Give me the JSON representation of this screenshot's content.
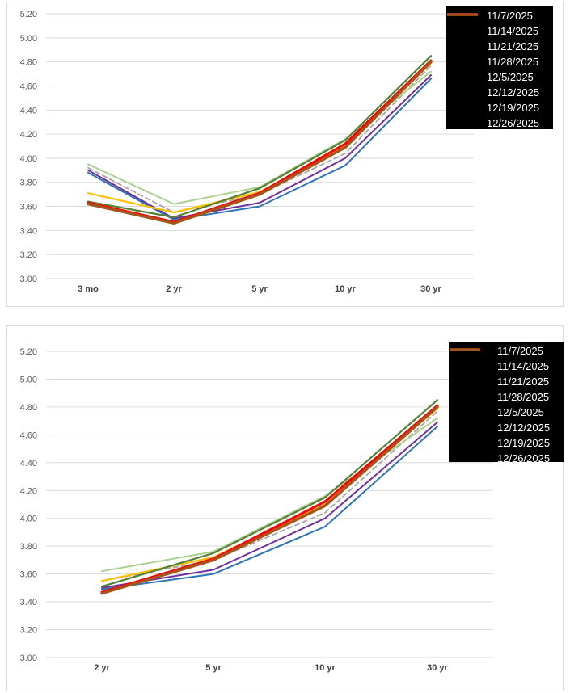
{
  "page": {
    "background": "#ffffff",
    "grid_color": "#d9d9d9",
    "axis_label_color": "#595959",
    "legend_bg": "#000000",
    "legend_text_color": "#ffffff"
  },
  "chart_data": [
    {
      "type": "line",
      "title": "",
      "xlabel": "",
      "ylabel": "",
      "grid": true,
      "legend_position": "top-right-inside",
      "ylim": [
        3.0,
        5.2
      ],
      "ytick_step": 0.2,
      "yticks": [
        "5.20",
        "5.00",
        "4.80",
        "4.60",
        "4.40",
        "4.20",
        "4.00",
        "3.80",
        "3.60",
        "3.40",
        "3.20",
        "3.00"
      ],
      "categories": [
        "3 mo",
        "2 yr",
        "5 yr",
        "10 yr",
        "30 yr"
      ],
      "series": [
        {
          "name": "11/7/2025",
          "color": "#a6a6a6",
          "legend_color": "#bfbfbf",
          "dashed": true,
          "width": 1.8,
          "values": [
            3.92,
            3.55,
            3.7,
            4.04,
            4.77
          ]
        },
        {
          "name": "11/14/2025",
          "color": "#a9d18e",
          "legend_color": "#a9d18e",
          "dashed": false,
          "width": 2.0,
          "values": [
            3.95,
            3.62,
            3.76,
            4.16,
            4.72
          ]
        },
        {
          "name": "11/21/2025",
          "color": "#7030a0",
          "legend_color": "#7030a0",
          "dashed": false,
          "width": 2.0,
          "values": [
            3.9,
            3.5,
            3.63,
            4.0,
            4.69
          ]
        },
        {
          "name": "11/28/2025",
          "color": "#2e75b6",
          "legend_color": "#2e75b6",
          "dashed": false,
          "width": 2.0,
          "values": [
            3.88,
            3.49,
            3.6,
            3.94,
            4.66
          ]
        },
        {
          "name": "12/5/2025",
          "color": "#ffc000",
          "legend_color": "#ffc000",
          "dashed": false,
          "width": 2.2,
          "values": [
            3.71,
            3.55,
            3.72,
            4.1,
            4.79
          ]
        },
        {
          "name": "12/12/2025",
          "color": "#548235",
          "legend_color": "#548235",
          "dashed": false,
          "width": 2.2,
          "values": [
            3.64,
            3.51,
            3.75,
            4.15,
            4.85
          ]
        },
        {
          "name": "12/19/2025",
          "color": "#ff0000",
          "legend_color": "#ff0000",
          "dashed": false,
          "width": 3.0,
          "values": [
            3.63,
            3.47,
            3.71,
            4.12,
            4.81
          ]
        },
        {
          "name": "12/26/2025",
          "color": "#a5551b",
          "legend_color": "#a5551b",
          "dashed": false,
          "width": 3.4,
          "values": [
            3.62,
            3.46,
            3.7,
            4.09,
            4.8
          ]
        }
      ]
    },
    {
      "type": "line",
      "title": "",
      "xlabel": "",
      "ylabel": "",
      "grid": true,
      "legend_position": "top-right-inside",
      "ylim": [
        3.0,
        5.2
      ],
      "ytick_step": 0.2,
      "yticks": [
        "5.20",
        "5.00",
        "4.80",
        "4.60",
        "4.40",
        "4.20",
        "4.00",
        "3.80",
        "3.60",
        "3.40",
        "3.20",
        "3.00"
      ],
      "categories": [
        "2 yr",
        "5 yr",
        "10 yr",
        "30 yr"
      ],
      "series": [
        {
          "name": "11/7/2025",
          "color": "#a6a6a6",
          "legend_color": "#bfbfbf",
          "dashed": true,
          "width": 1.8,
          "values": [
            3.55,
            3.7,
            4.04,
            4.77
          ]
        },
        {
          "name": "11/14/2025",
          "color": "#a9d18e",
          "legend_color": "#a9d18e",
          "dashed": false,
          "width": 2.0,
          "values": [
            3.62,
            3.76,
            4.16,
            4.72
          ]
        },
        {
          "name": "11/21/2025",
          "color": "#7030a0",
          "legend_color": "#7030a0",
          "dashed": false,
          "width": 2.0,
          "values": [
            3.5,
            3.63,
            4.0,
            4.69
          ]
        },
        {
          "name": "11/28/2025",
          "color": "#2e75b6",
          "legend_color": "#2e75b6",
          "dashed": false,
          "width": 2.0,
          "values": [
            3.49,
            3.6,
            3.94,
            4.66
          ]
        },
        {
          "name": "12/5/2025",
          "color": "#ffc000",
          "legend_color": "#ffc000",
          "dashed": false,
          "width": 2.2,
          "values": [
            3.55,
            3.72,
            4.1,
            4.79
          ]
        },
        {
          "name": "12/12/2025",
          "color": "#548235",
          "legend_color": "#548235",
          "dashed": false,
          "width": 2.2,
          "values": [
            3.51,
            3.75,
            4.15,
            4.85
          ]
        },
        {
          "name": "12/19/2025",
          "color": "#ff0000",
          "legend_color": "#ff0000",
          "dashed": false,
          "width": 3.0,
          "values": [
            3.47,
            3.71,
            4.12,
            4.81
          ]
        },
        {
          "name": "12/26/2025",
          "color": "#a5551b",
          "legend_color": "#a5551b",
          "dashed": false,
          "width": 3.4,
          "values": [
            3.46,
            3.7,
            4.09,
            4.8
          ]
        }
      ]
    }
  ]
}
